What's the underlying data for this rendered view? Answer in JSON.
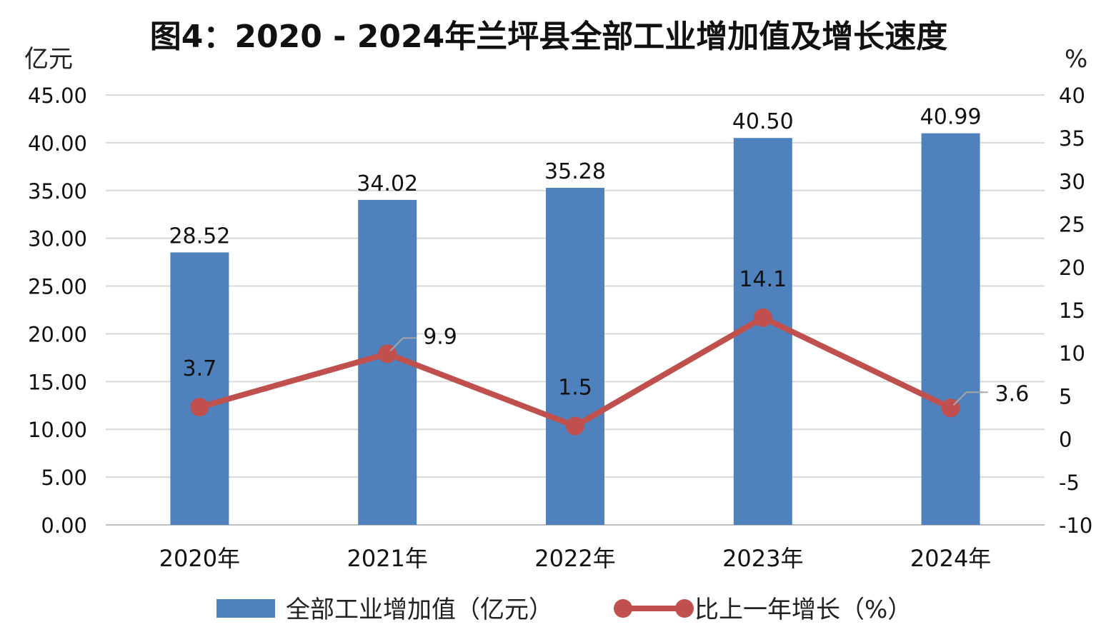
{
  "chart_data": {
    "type": "bar",
    "title": "图4：2020 - 2024年兰坪县全部工业增加值及增长速度",
    "y_left_unit": "亿元",
    "y_right_unit": "%",
    "categories": [
      "2020年",
      "2021年",
      "2022年",
      "2023年",
      "2024年"
    ],
    "y_left_ticks": [
      "0.00",
      "5.00",
      "10.00",
      "15.00",
      "20.00",
      "25.00",
      "30.00",
      "35.00",
      "40.00",
      "45.00"
    ],
    "y_right_ticks": [
      "-10",
      "-5",
      "0",
      "5",
      "10",
      "15",
      "20",
      "25",
      "30",
      "35",
      "40"
    ],
    "y_left_lim": [
      0,
      45
    ],
    "y_right_lim": [
      -10,
      40
    ],
    "grid": true,
    "legend_position": "bottom",
    "series": [
      {
        "name": "全部工业增加值（亿元）",
        "type": "bar",
        "axis": "left",
        "color": "#4F81BD",
        "values": [
          28.52,
          34.02,
          35.28,
          40.5,
          40.99
        ],
        "labels": [
          "28.52",
          "34.02",
          "35.28",
          "40.50",
          "40.99"
        ]
      },
      {
        "name": "比上一年增长（%）",
        "type": "line",
        "axis": "right",
        "color": "#C0504D",
        "values": [
          3.7,
          9.9,
          1.5,
          14.1,
          3.6
        ],
        "labels": [
          "3.7",
          "9.9",
          "1.5",
          "14.1",
          "3.6"
        ]
      }
    ]
  }
}
